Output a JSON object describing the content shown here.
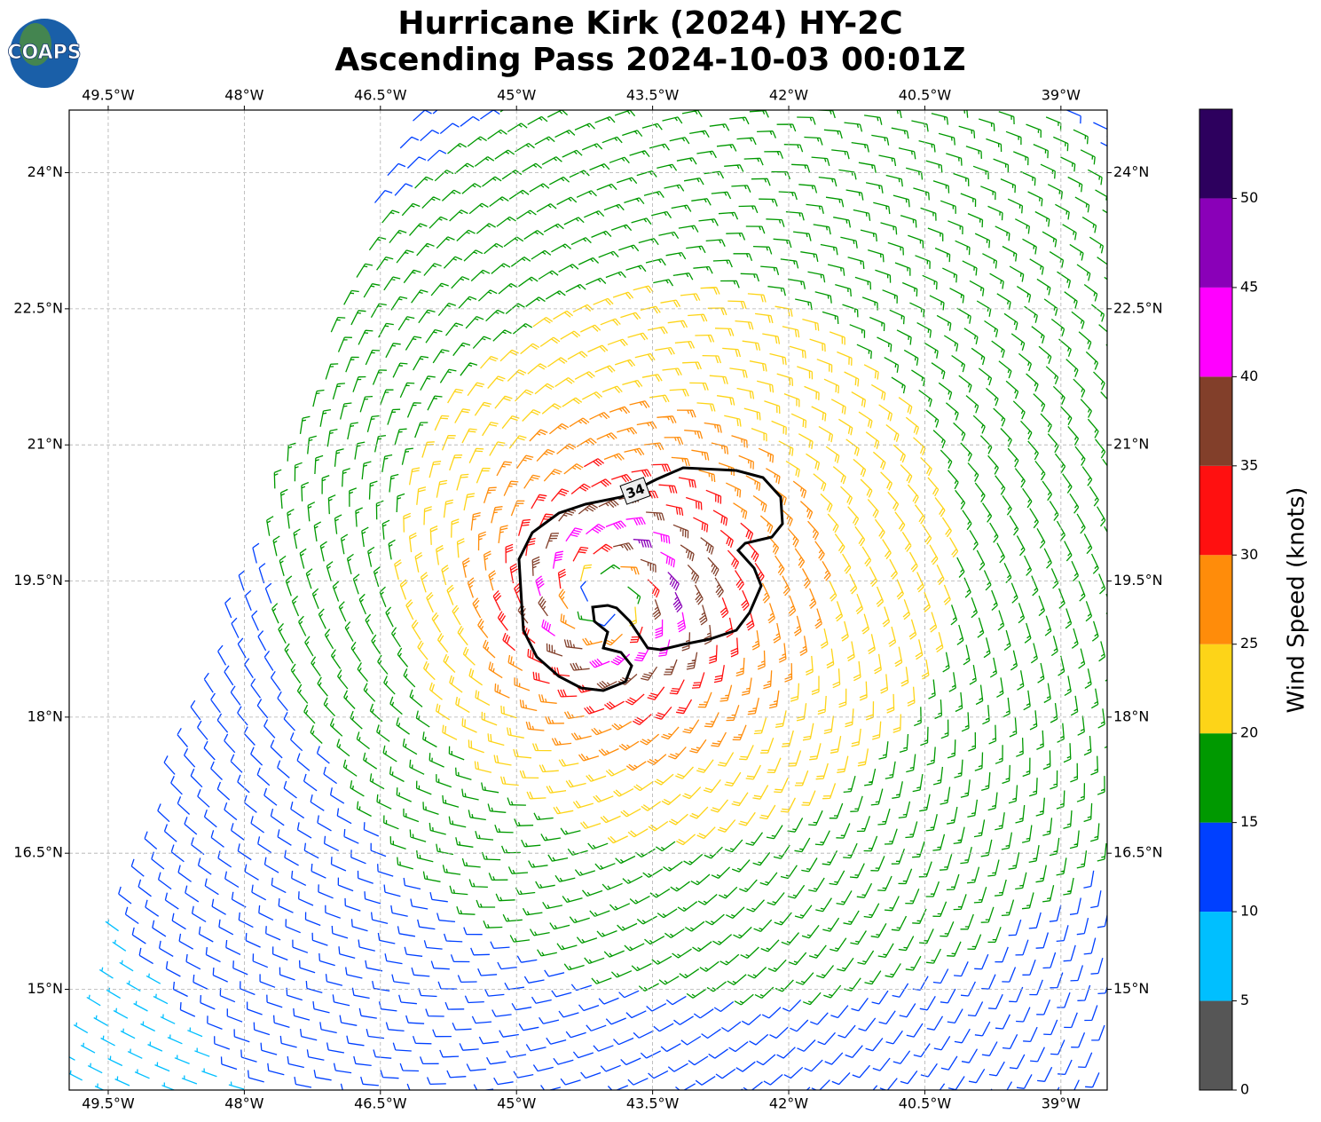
{
  "title": [
    "Hurricane Kirk (2024) HY-2C",
    "Ascending Pass 2024-10-03 00:01Z"
  ],
  "logo": "COAPS",
  "map": {
    "xlim": [
      -49.93,
      -38.49
    ],
    "ylim": [
      13.89,
      24.69
    ],
    "grid": true,
    "xticks": [
      {
        "value": -49.5,
        "label": "49.5°W"
      },
      {
        "value": -48,
        "label": "48°W"
      },
      {
        "value": -46.5,
        "label": "46.5°W"
      },
      {
        "value": -45,
        "label": "45°W"
      },
      {
        "value": -43.5,
        "label": "43.5°W"
      },
      {
        "value": -42,
        "label": "42°W"
      },
      {
        "value": -40.5,
        "label": "40.5°W"
      },
      {
        "value": -39,
        "label": "39°W"
      }
    ],
    "yticks": [
      {
        "value": 15,
        "label": "15°N"
      },
      {
        "value": 16.5,
        "label": "16.5°N"
      },
      {
        "value": 18,
        "label": "18°N"
      },
      {
        "value": 19.5,
        "label": "19.5°N"
      },
      {
        "value": 21,
        "label": "21°N"
      },
      {
        "value": 22.5,
        "label": "22.5°N"
      },
      {
        "value": 24,
        "label": "24°N"
      }
    ]
  },
  "contour_label": "34",
  "colorbar": {
    "label": "Wind Speed (knots)",
    "ylim": [
      0,
      55
    ],
    "yticks": [
      0,
      5,
      10,
      15,
      20,
      25,
      30,
      35,
      40,
      45,
      50
    ],
    "colors": [
      "#565656",
      "#00bfff",
      "#0040ff",
      "#009900",
      "#fdd418",
      "#ff8c0a",
      "#ff1010",
      "#823f2a",
      "#ff00ff",
      "#8a00b8",
      "#2d005e"
    ]
  }
}
